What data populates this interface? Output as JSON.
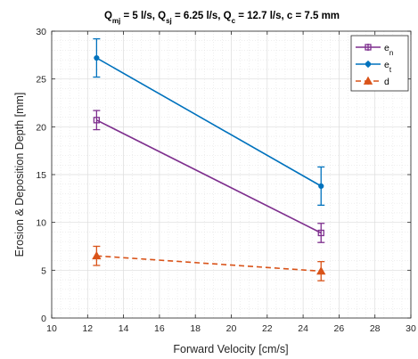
{
  "chart_data": {
    "type": "line",
    "title": "Q_mj = 5 l/s, Q_sj = 6.25 l/s, Q_c = 12.7 l/s, c = 7.5 mm",
    "title_parts": [
      {
        "text": "Q"
      },
      {
        "text": "mj",
        "sub": true
      },
      {
        "text": " = 5 l/s, Q"
      },
      {
        "text": "sj",
        "sub": true
      },
      {
        "text": " = 6.25 l/s, Q"
      },
      {
        "text": "c",
        "sub": true
      },
      {
        "text": " = 12.7 l/s, c = 7.5 mm"
      }
    ],
    "xlabel": "Forward Velocity [cm/s]",
    "ylabel": "Erosion & Deposition Depth [mm]",
    "xlim": [
      10,
      30
    ],
    "ylim": [
      0,
      30
    ],
    "xticks": [
      10,
      12,
      14,
      16,
      18,
      20,
      22,
      24,
      26,
      28,
      30
    ],
    "yticks": [
      0,
      5,
      10,
      15,
      20,
      25,
      30
    ],
    "grid": true,
    "minor_grid": true,
    "legend_position": "top-right",
    "series": [
      {
        "name": "e_n",
        "name_main": "e",
        "name_sub": "n",
        "color": "#7E2F8E",
        "marker": "square",
        "line_style": "solid",
        "x": [
          12.5,
          25
        ],
        "y": [
          20.7,
          8.9
        ],
        "error": [
          1.0,
          1.0
        ]
      },
      {
        "name": "e_t",
        "name_main": "e",
        "name_sub": "t",
        "color": "#0072BD",
        "marker": "dot",
        "line_style": "solid",
        "x": [
          12.5,
          25
        ],
        "y": [
          27.2,
          13.8
        ],
        "error": [
          2.0,
          2.0
        ]
      },
      {
        "name": "d",
        "name_main": "d",
        "name_sub": "",
        "color": "#D95319",
        "marker": "triangle",
        "line_style": "dashed",
        "x": [
          12.5,
          25
        ],
        "y": [
          6.5,
          4.9
        ],
        "error": [
          1.0,
          1.0
        ]
      }
    ]
  }
}
